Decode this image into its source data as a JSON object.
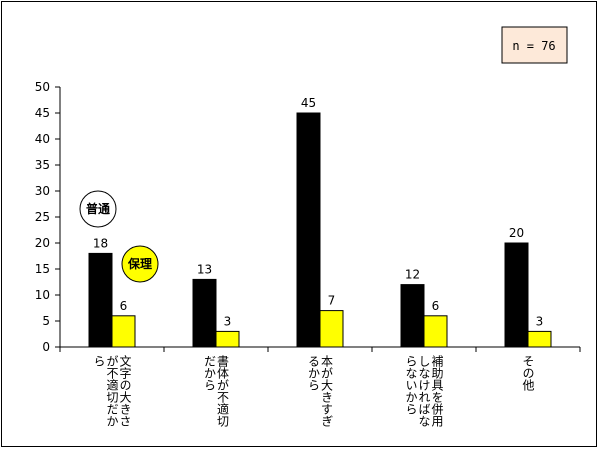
{
  "chart_data": {
    "type": "bar",
    "categories": [
      "文字の大きさが不適切だから",
      "書体が不適切だから",
      "本が大きすぎるから",
      "補助具を併用しなければならないから",
      "その他"
    ],
    "category_lines": [
      [
        "文字の大きさ",
        "が不適切だか",
        "ら"
      ],
      [
        "書体が不適切",
        "だから"
      ],
      [
        "本が大きすぎ",
        "るから"
      ],
      [
        "補助具を併用",
        "しなければな",
        "らないから"
      ],
      [
        "その他"
      ]
    ],
    "series": [
      {
        "name": "普通",
        "values": [
          18,
          13,
          45,
          12,
          20
        ],
        "color": "#000000"
      },
      {
        "name": "保理",
        "values": [
          6,
          3,
          7,
          6,
          3
        ],
        "color": "#ffff00"
      }
    ],
    "ylim": [
      0,
      50
    ],
    "yticks": [
      0,
      5,
      10,
      15,
      20,
      25,
      30,
      35,
      40,
      45,
      50
    ],
    "legend_placement": "left",
    "annotation": "n = 76",
    "grid": false
  }
}
